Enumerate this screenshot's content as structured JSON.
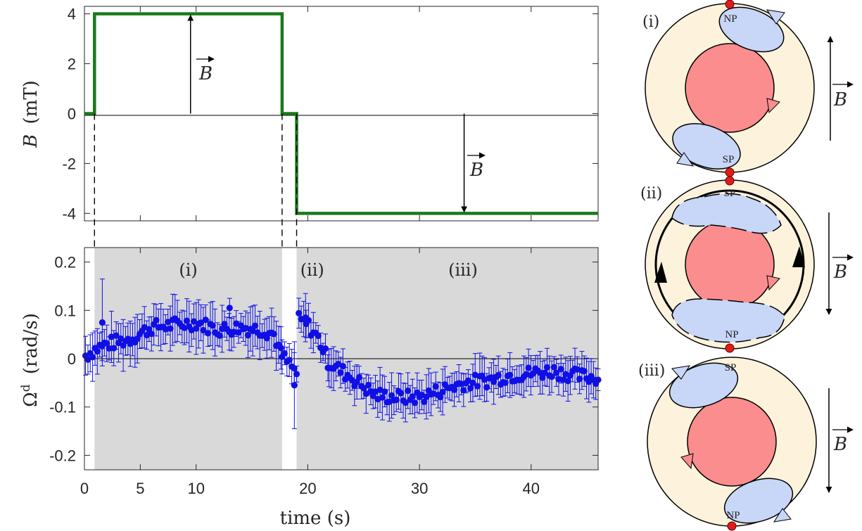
{
  "chart_data": [
    {
      "type": "line",
      "ylabel_symbol": "B",
      "ylabel_unit": "(mT)",
      "xlim": [
        0,
        46
      ],
      "ylim": [
        -4.3,
        4.3
      ],
      "yticks": [
        "-4",
        "-2",
        "0",
        "2",
        "4"
      ],
      "field_annotations": [
        "B",
        "B"
      ],
      "series": [
        {
          "color": "#1a7a1a",
          "x": [
            0,
            0.9,
            0.9,
            17.7,
            17.7,
            19,
            19,
            46
          ],
          "y": [
            0,
            0,
            4,
            4,
            0,
            0,
            -4,
            -4
          ]
        }
      ],
      "field_arrows": [
        {
          "x": 9.5,
          "from": 0,
          "to": 4
        },
        {
          "x": 34,
          "from": 0,
          "to": -4
        }
      ]
    },
    {
      "type": "scatter",
      "ylabel_symbol": "Ω",
      "ylabel_sup": "d",
      "ylabel_unit": "(rad/s)",
      "xlabel": "time (s)",
      "xlim": [
        0,
        46
      ],
      "ylim": [
        -0.23,
        0.23
      ],
      "xticks": [
        "0",
        "5",
        "10",
        "20",
        "30",
        "40"
      ],
      "xtick_values": [
        0,
        5,
        10,
        20,
        30,
        40
      ],
      "yticks": [
        "-0.2",
        "-0.1",
        "0",
        "0.1",
        "0.2"
      ],
      "ytick_values": [
        -0.2,
        -0.1,
        0,
        0.1,
        0.2
      ],
      "regions": [
        {
          "label": "(i)",
          "x0": 0.9,
          "x1": 17.7
        },
        {
          "label": "(ii)",
          "x0": 19,
          "x1": 21.8
        },
        {
          "label": "(iii)",
          "x0": 21.8,
          "x1": 46
        }
      ],
      "dashed_lines_x": [
        0.9,
        17.7,
        19,
        21.8
      ],
      "marker_color": "#0f0fe6",
      "segments": [
        {
          "x0": 0.1,
          "x1": 17.6,
          "n": 84,
          "keys": [
            [
              0,
              0.005
            ],
            [
              1,
              0.02
            ],
            [
              2,
              0.03
            ],
            [
              4,
              0.04
            ],
            [
              6,
              0.065
            ],
            [
              8,
              0.07
            ],
            [
              10,
              0.075
            ],
            [
              12,
              0.06
            ],
            [
              14,
              0.065
            ],
            [
              16,
              0.06
            ],
            [
              17,
              0.05
            ],
            [
              17.6,
              0.01
            ]
          ],
          "err": 0.045
        },
        {
          "x0": 17.7,
          "x1": 19,
          "n": 7,
          "keys": [
            [
              17.7,
              0.005
            ],
            [
              18.3,
              -0.01
            ],
            [
              19,
              -0.03
            ]
          ],
          "err": 0.03
        },
        {
          "x0": 19.2,
          "x1": 21.8,
          "n": 13,
          "keys": [
            [
              19.2,
              0.08
            ],
            [
              20,
              0.07
            ],
            [
              21,
              0.04
            ],
            [
              21.8,
              -0.005
            ]
          ],
          "err": 0.035
        },
        {
          "x0": 21.9,
          "x1": 46,
          "n": 117,
          "keys": [
            [
              22,
              -0.01
            ],
            [
              24,
              -0.04
            ],
            [
              26,
              -0.075
            ],
            [
              28,
              -0.08
            ],
            [
              30,
              -0.08
            ],
            [
              32,
              -0.065
            ],
            [
              34,
              -0.05
            ],
            [
              36,
              -0.045
            ],
            [
              38,
              -0.035
            ],
            [
              40,
              -0.03
            ],
            [
              42,
              -0.025
            ],
            [
              44,
              -0.035
            ],
            [
              46,
              -0.04
            ]
          ],
          "err": 0.04
        }
      ],
      "outliers": [
        {
          "x": 1.6,
          "y": 0.075,
          "err": 0.09
        },
        {
          "x": 13.0,
          "y": 0.105,
          "err": 0.02
        },
        {
          "x": 19.8,
          "y": 0.085,
          "err": 0.05
        },
        {
          "x": 18.8,
          "y": -0.055,
          "err": 0.09
        }
      ]
    }
  ],
  "diagrams": [
    {
      "label": "(i)",
      "top_pole": "NP",
      "bottom_pole": "SP",
      "field": "B",
      "field_direction": "up"
    },
    {
      "label": "(ii)",
      "top_pole": "SP",
      "bottom_pole": "NP",
      "field": "B",
      "field_direction": "down"
    },
    {
      "label": "(iii)",
      "top_pole": "SP",
      "bottom_pole": "NP",
      "field": "B",
      "field_direction": "down"
    }
  ],
  "colors": {
    "green_line": "#1a7a1a",
    "markers": "#0f0fe6",
    "shading": "#d9d9d9",
    "shell": "#fdf3dc",
    "core": "#fb8d8f",
    "vortex": "#c8d6f7",
    "pole_dot": "#e01b1b"
  }
}
